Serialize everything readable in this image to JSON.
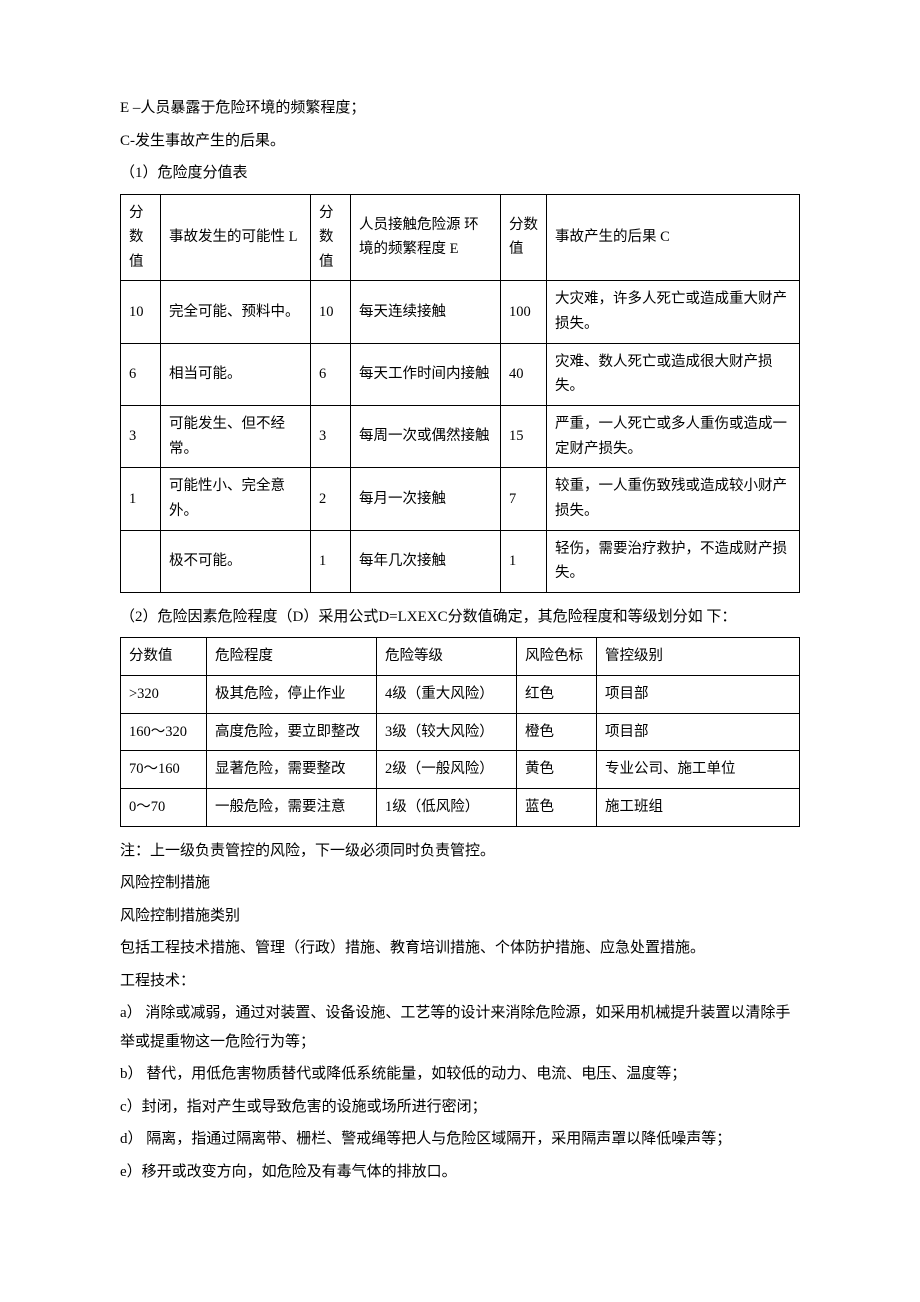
{
  "intro": {
    "lineE": "E –人员暴露于危险环境的频繁程度；",
    "lineC": "C-发生事故产生的后果。",
    "t1title": "（1）危险度分值表"
  },
  "table1": {
    "head": {
      "s0": "分数值",
      "l": "事故发生的可能性 L",
      "s1": "分数值",
      "e": "人员接触危险源 环境的频繁程度 E",
      "s2": "分数值",
      "c": "事故产生的后果 C"
    },
    "rows": [
      {
        "s0": "10",
        "l": "完全可能、预料中。",
        "s1": "10",
        "e": "每天连续接触",
        "s2": "100",
        "c": "大灾难，许多人死亡或造成重大财产损失。"
      },
      {
        "s0": "6",
        "l": "相当可能。",
        "s1": "6",
        "e": "每天工作时间内接触",
        "s2": "40",
        "c": "灾难、数人死亡或造成很大财产损失。"
      },
      {
        "s0": "3",
        "l": "可能发生、但不经常。",
        "s1": "3",
        "e": "每周一次或偶然接触",
        "s2": "15",
        "c": "严重，一人死亡或多人重伤或造成一定财产损失。"
      },
      {
        "s0": "1",
        "l": "可能性小、完全意外。",
        "s1": "2",
        "e": "每月一次接触",
        "s2": "7",
        "c": "较重，一人重伤致残或造成较小财产损失。"
      },
      {
        "s0": "",
        "l": "极不可能。",
        "s1": "1",
        "e": "每年几次接触",
        "s2": "1",
        "c": "轻伤，需要治疗救护，不造成财产损失。"
      }
    ]
  },
  "t2title": "（2）危险因素危险程度（D）采用公式D=LXEXC分数值确定，其危险程度和等级划分如 下：",
  "table2": {
    "head": {
      "c0": "分数值",
      "c1": "危险程度",
      "c2": "危险等级",
      "c3": "风险色标",
      "c4": "管控级别"
    },
    "rows": [
      {
        "c0": ">320",
        "c1": "极其危险，停止作业",
        "c2": "4级（重大风险）",
        "c3": "红色",
        "c4": "项目部"
      },
      {
        "c0": "160〜320",
        "c1": "高度危险，要立即整改",
        "c2": "3级（较大风险）",
        "c3": "橙色",
        "c4": "项目部"
      },
      {
        "c0": "70〜160",
        "c1": "显著危险，需要整改",
        "c2": "2级（一般风险）",
        "c3": "黄色",
        "c4": "专业公司、施工单位"
      },
      {
        "c0": "0〜70",
        "c1": "一般危险，需要注意",
        "c2": "1级（低风险）",
        "c3": "蓝色",
        "c4": "施工班组"
      }
    ]
  },
  "after": {
    "note": "注：上一级负责管控的风险，下一级必须同时负责管控。",
    "h1": "风险控制措施",
    "h2": "风险控制措施类别",
    "p1": "包括工程技术措施、管理（行政）措施、教育培训措施、个体防护措施、应急处置措施。",
    "p2": "工程技术：",
    "a": "a）  消除或减弱，通过对装置、设备设施、工艺等的设计来消除危险源，如采用机械提升装置以清除手举或提重物这一危险行为等；",
    "b": "b）  替代，用低危害物质替代或降低系统能量，如较低的动力、电流、电压、温度等；",
    "c": "c）封闭，指对产生或导致危害的设施或场所进行密闭；",
    "d": "d）  隔离，指通过隔离带、栅栏、警戒绳等把人与危险区域隔开，采用隔声罩以降低噪声等；",
    "e": "e）移开或改变方向，如危险及有毒气体的排放口。"
  }
}
